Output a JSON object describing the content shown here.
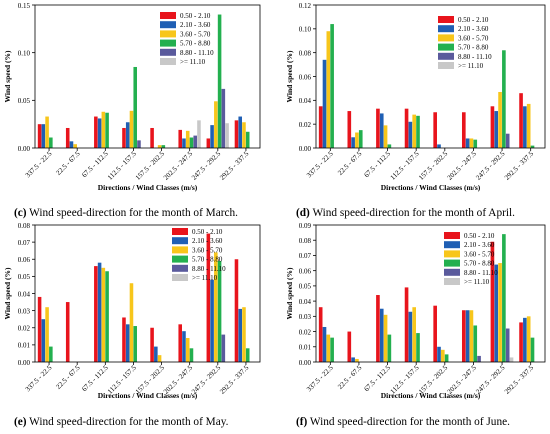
{
  "chart_data": [
    {
      "type": "bar",
      "panel": "c",
      "caption_label": "(c)",
      "caption_text": "Wind speed-direction for the month of March.",
      "xlabel": "Directions / Wind Classes (m/s)",
      "ylabel": "Wind speed (%)",
      "ylim": [
        0,
        0.15
      ],
      "yticks": [
        "0.00",
        "0.05",
        "0.10",
        "0.15"
      ],
      "yticks_values": [
        0,
        0.05,
        0.1,
        0.15
      ],
      "legend_position": "top-right",
      "categories": [
        "337.5 - 22.5",
        "22.5 - 67.5",
        "67.5 - 112.5",
        "112.5 - 157.5",
        "157.5 - 202.5",
        "202.5 - 247.5",
        "247.5 - 292.5",
        "292.5 - 337.5"
      ],
      "series": [
        {
          "name": "0.50 - 2.10",
          "values": [
            0.025,
            0.021,
            0.033,
            0.021,
            0.021,
            0.019,
            0.01,
            0.029
          ]
        },
        {
          "name": "2.10 - 3.60",
          "values": [
            0.025,
            0.007,
            0.031,
            0.027,
            0.0,
            0.01,
            0.024,
            0.033
          ]
        },
        {
          "name": "3.60 - 5.70",
          "values": [
            0.033,
            0.004,
            0.038,
            0.039,
            0.003,
            0.018,
            0.049,
            0.027
          ]
        },
        {
          "name": "5.70 - 8.80",
          "values": [
            0.011,
            0.0,
            0.037,
            0.085,
            0.003,
            0.011,
            0.14,
            0.017
          ]
        },
        {
          "name": "8.80 - 11.10",
          "values": [
            0.0,
            0.0,
            0.0,
            0.008,
            0.0,
            0.013,
            0.062,
            0.0
          ]
        },
        {
          "name": ">= 11.10",
          "values": [
            0.0,
            0.0,
            0.0,
            0.0,
            0.0,
            0.029,
            0.026,
            0.0
          ]
        }
      ]
    },
    {
      "type": "bar",
      "panel": "d",
      "caption_label": "(d)",
      "caption_text": "Wind speed-direction for the month of April.",
      "xlabel": "Directions / Wind Classes (m/s)",
      "ylabel": "Wind speed (%)",
      "ylim": [
        0,
        0.12
      ],
      "yticks": [
        "0.00",
        "0.02",
        "0.04",
        "0.06",
        "0.08",
        "0.10",
        "0.12"
      ],
      "yticks_values": [
        0,
        0.02,
        0.04,
        0.06,
        0.08,
        0.1,
        0.12
      ],
      "legend_position": "top-right",
      "categories": [
        "337.5 - 22.5",
        "22.5 - 67.5",
        "67.5 - 112.5",
        "112.5 - 157.5",
        "157.5 - 202.5",
        "202.5 - 247.5",
        "247.5 - 292.5",
        "292.5 - 337.5"
      ],
      "series": [
        {
          "name": "0.50 - 2.10",
          "values": [
            0.035,
            0.031,
            0.033,
            0.033,
            0.03,
            0.03,
            0.035,
            0.046
          ]
        },
        {
          "name": "2.10 - 3.60",
          "values": [
            0.074,
            0.009,
            0.029,
            0.022,
            0.003,
            0.008,
            0.031,
            0.035
          ]
        },
        {
          "name": "3.60 - 5.70",
          "values": [
            0.098,
            0.013,
            0.019,
            0.028,
            0.0,
            0.008,
            0.047,
            0.037
          ]
        },
        {
          "name": "5.70 - 8.80",
          "values": [
            0.104,
            0.015,
            0.003,
            0.027,
            0.0,
            0.007,
            0.082,
            0.002
          ]
        },
        {
          "name": "8.80 - 11.10",
          "values": [
            0.0,
            0.0,
            0.0,
            0.0,
            0.0,
            0.0,
            0.012,
            0.0
          ]
        },
        {
          "name": ">= 11.10",
          "values": [
            0.0,
            0.0,
            0.0,
            0.0,
            0.0,
            0.0,
            0.0,
            0.0
          ]
        }
      ]
    },
    {
      "type": "bar",
      "panel": "e",
      "caption_label": "(e)",
      "caption_text": "Wind speed-direction for the month of May.",
      "xlabel": "Directions / Wind Classes (m/s)",
      "ylabel": "Wind speed (%)",
      "ylim": [
        0,
        0.08
      ],
      "yticks": [
        "0.00",
        "0.01",
        "0.02",
        "0.03",
        "0.04",
        "0.05",
        "0.06",
        "0.07",
        "0.08"
      ],
      "yticks_values": [
        0,
        0.01,
        0.02,
        0.03,
        0.04,
        0.05,
        0.06,
        0.07,
        0.08
      ],
      "legend_position": "top-right",
      "categories": [
        "337.5 - 22.5",
        "22.5 - 67.5",
        "67.5 - 112.5",
        "112.5 - 157.5",
        "157.5 - 202.5",
        "202.5 - 247.5",
        "247.5 - 292.5",
        "292.5 - 337.5"
      ],
      "series": [
        {
          "name": "0.50 - 2.10",
          "values": [
            0.038,
            0.035,
            0.056,
            0.026,
            0.02,
            0.022,
            0.075,
            0.06
          ]
        },
        {
          "name": "2.10 - 3.60",
          "values": [
            0.025,
            0.0,
            0.058,
            0.022,
            0.009,
            0.018,
            0.048,
            0.031
          ]
        },
        {
          "name": "3.60 - 5.70",
          "values": [
            0.032,
            0.0,
            0.055,
            0.046,
            0.004,
            0.014,
            0.064,
            0.032
          ]
        },
        {
          "name": "5.70 - 8.80",
          "values": [
            0.009,
            0.0,
            0.053,
            0.021,
            0.0,
            0.008,
            0.059,
            0.008
          ]
        },
        {
          "name": "8.80 - 11.10",
          "values": [
            0.0,
            0.0,
            0.0,
            0.0,
            0.0,
            0.0,
            0.016,
            0.0
          ]
        },
        {
          "name": ">= 11.10",
          "values": [
            0.0,
            0.0,
            0.0,
            0.0,
            0.0,
            0.0,
            0.0,
            0.0
          ]
        }
      ]
    },
    {
      "type": "bar",
      "panel": "f",
      "caption_label": "(f)",
      "caption_text": "Wind speed-direction for the month of June.",
      "xlabel": "Directions / Wind Classes (m/s)",
      "ylabel": "Wind speed (%)",
      "ylim": [
        0,
        0.09
      ],
      "yticks": [
        "0.00",
        "0.01",
        "0.02",
        "0.03",
        "0.04",
        "0.05",
        "0.06",
        "0.07",
        "0.08",
        "0.09"
      ],
      "yticks_values": [
        0,
        0.01,
        0.02,
        0.03,
        0.04,
        0.05,
        0.06,
        0.07,
        0.08,
        0.09
      ],
      "legend_position": "top-right",
      "categories": [
        "337.5 - 22.5",
        "22.5 - 67.5",
        "67.5 - 112.5",
        "112.5 - 157.5",
        "157.5 - 202.5",
        "202.5 - 247.5",
        "247.5 - 292.5",
        "292.5 - 337.5"
      ],
      "series": [
        {
          "name": "0.50 - 2.10",
          "values": [
            0.036,
            0.02,
            0.044,
            0.049,
            0.037,
            0.034,
            0.079,
            0.026
          ]
        },
        {
          "name": "2.10 - 3.60",
          "values": [
            0.023,
            0.003,
            0.035,
            0.033,
            0.01,
            0.034,
            0.064,
            0.029
          ]
        },
        {
          "name": "3.60 - 5.70",
          "values": [
            0.018,
            0.002,
            0.031,
            0.036,
            0.008,
            0.034,
            0.065,
            0.03
          ]
        },
        {
          "name": "5.70 - 8.80",
          "values": [
            0.016,
            0.0,
            0.018,
            0.019,
            0.005,
            0.024,
            0.084,
            0.016
          ]
        },
        {
          "name": "8.80 - 11.10",
          "values": [
            0.0,
            0.0,
            0.0,
            0.0,
            0.0,
            0.004,
            0.022,
            0.0
          ]
        },
        {
          "name": ">= 11.10",
          "values": [
            0.0,
            0.0,
            0.0,
            0.0,
            0.0,
            0.0,
            0.003,
            0.0
          ]
        }
      ]
    }
  ],
  "series_colors": [
    "#e8141c",
    "#1f5fb4",
    "#f7c61b",
    "#23b04f",
    "#5a5a9c",
    "#c8c8c8"
  ]
}
